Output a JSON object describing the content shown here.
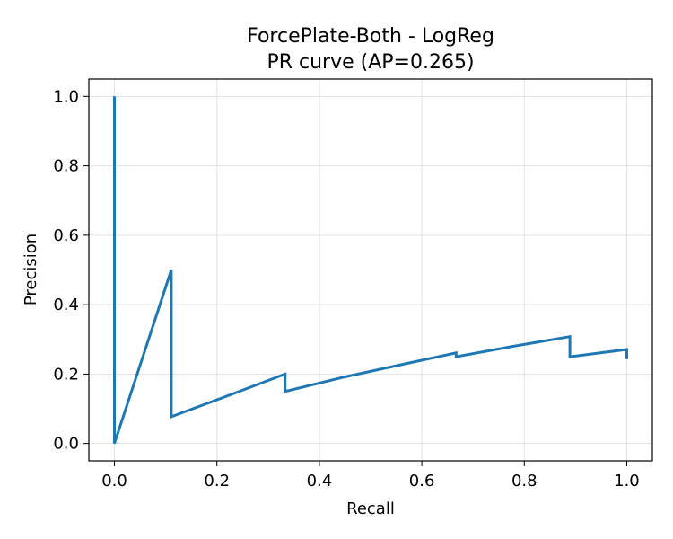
{
  "chart_data": {
    "type": "line",
    "title_line1": "ForcePlate-Both - LogReg",
    "title_line2": "PR curve (AP=0.265)",
    "xlabel": "Recall",
    "ylabel": "Precision",
    "xlim": [
      -0.05,
      1.05
    ],
    "ylim": [
      -0.05,
      1.05
    ],
    "grid": true,
    "xticks": [
      "0.0",
      "0.2",
      "0.4",
      "0.6",
      "0.8",
      "1.0"
    ],
    "yticks": [
      "0.0",
      "0.2",
      "0.4",
      "0.6",
      "0.8",
      "1.0"
    ],
    "series_color": "#1f77b4",
    "series": [
      {
        "x": [
          0.0,
          0.0,
          0.111,
          0.111,
          0.222,
          0.333,
          0.333,
          0.444,
          0.556,
          0.667,
          0.667,
          0.778,
          0.889,
          0.889,
          1.0,
          1.0
        ],
        "y": [
          1.0,
          0.0,
          0.5,
          0.077,
          0.138,
          0.2,
          0.15,
          0.19,
          0.226,
          0.261,
          0.25,
          0.28,
          0.308,
          0.25,
          0.271,
          0.243
        ]
      }
    ]
  }
}
